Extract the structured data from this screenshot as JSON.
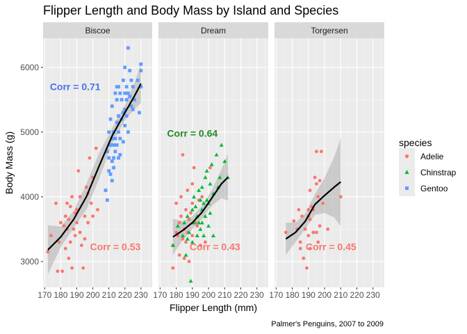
{
  "chart_data": {
    "type": "scatter",
    "title": "Flipper Length and Body Mass by Island and Species",
    "xlabel": "Flipper Length (mm)",
    "ylabel": "Body Mass (g)",
    "caption": "Palmer's Penguins, 2007 to 2009",
    "xlim": [
      169,
      237
    ],
    "ylim": [
      2600,
      6450
    ],
    "x_ticks": [
      170,
      180,
      190,
      200,
      210,
      220,
      230
    ],
    "y_ticks": [
      3000,
      4000,
      5000,
      6000
    ],
    "tick_labels_x": [
      "170",
      "180",
      "190",
      "200",
      "210",
      "220",
      "230"
    ],
    "tick_labels_y": [
      "3000",
      "4000",
      "5000",
      "6000"
    ],
    "legend": {
      "title": "species",
      "position": "right",
      "entries": [
        {
          "label": "Adelie",
          "color": "#F8766D",
          "shape": "circle"
        },
        {
          "label": "Chinstrap",
          "color": "#00BA38",
          "shape": "triangle"
        },
        {
          "label": "Gentoo",
          "color": "#619CFF",
          "shape": "square"
        }
      ]
    },
    "facets": [
      {
        "label": "Biscoe",
        "annotations": [
          {
            "text": "Corr = 0.71",
            "color": "#4472E8",
            "x": 189,
            "y": 5700,
            "anchor": "middle"
          },
          {
            "text": "Corr = 0.53",
            "color": "#F8766D",
            "x": 214,
            "y": 3230,
            "anchor": "middle"
          }
        ],
        "smooth": {
          "x": [
            172,
            180,
            188,
            196,
            204,
            212,
            220,
            226,
            230
          ],
          "y": [
            3180,
            3380,
            3650,
            4000,
            4480,
            4940,
            5300,
            5560,
            5750
          ],
          "lower": [
            2800,
            3220,
            3520,
            3800,
            4280,
            4820,
            5180,
            5360,
            5450
          ],
          "upper": [
            3560,
            3540,
            3780,
            4200,
            4680,
            5060,
            5420,
            5760,
            6050
          ]
        },
        "series": [
          {
            "name": "Adelie",
            "x": [
              172,
              174,
              177,
              178,
              179,
              180,
              181,
              182,
              183,
              183,
              184,
              184,
              185,
              185,
              186,
              186,
              187,
              187,
              188,
              189,
              189,
              190,
              190,
              191,
              192,
              192,
              193,
              194,
              195,
              195,
              196,
              197,
              197,
              198,
              199,
              200,
              200,
              202,
              203
            ],
            "y": [
              3150,
              3400,
              3900,
              2850,
              3300,
              3600,
              2850,
              3550,
              3200,
              3700,
              3500,
              3900,
              3050,
              3650,
              3300,
              3850,
              4000,
              2900,
              3500,
              3750,
              3400,
              3800,
              3600,
              4400,
              4000,
              3450,
              3250,
              2900,
              3700,
              3350,
              4150,
              3600,
              4050,
              4600,
              3900,
              4300,
              3700,
              4750,
              3800
            ]
          },
          {
            "name": "Gentoo",
            "x": [
              208,
              209,
              209,
              210,
              210,
              210,
              211,
              211,
              211,
              212,
              212,
              212,
              212,
              213,
              213,
              213,
              213,
              214,
              214,
              214,
              215,
              215,
              215,
              215,
              216,
              216,
              216,
              216,
              217,
              217,
              217,
              218,
              218,
              219,
              219,
              219,
              220,
              220,
              220,
              220,
              221,
              221,
              221,
              222,
              222,
              222,
              223,
              223,
              224,
              224,
              225,
              225,
              226,
              228,
              229,
              230,
              230,
              230
            ],
            "y": [
              4100,
              3950,
              4700,
              4600,
              5000,
              4400,
              4350,
              4800,
              5200,
              4550,
              4900,
              5400,
              4250,
              4600,
              4800,
              5000,
              4450,
              4700,
              5600,
              4900,
              4800,
              5150,
              5700,
              5500,
              4600,
              5000,
              5250,
              5700,
              4650,
              4900,
              5600,
              5200,
              5500,
              4850,
              5300,
              5800,
              5350,
              5600,
              6000,
              5100,
              5250,
              5500,
              5700,
              5000,
              5600,
              6300,
              5550,
              5950,
              5400,
              5800,
              5350,
              5700,
              5500,
              5800,
              5300,
              5950,
              5700,
              6050
            ]
          }
        ]
      },
      {
        "label": "Dream",
        "annotations": [
          {
            "text": "Corr = 0.64",
            "color": "#1E8C1E",
            "x": 190,
            "y": 4980,
            "anchor": "middle"
          },
          {
            "text": "Corr = 0.43",
            "color": "#F8766D",
            "x": 204,
            "y": 3230,
            "anchor": "middle"
          }
        ],
        "smooth": {
          "x": [
            178,
            184,
            190,
            196,
            202,
            208,
            212
          ],
          "y": [
            3380,
            3480,
            3600,
            3760,
            3980,
            4200,
            4300
          ],
          "lower": [
            3100,
            3330,
            3500,
            3660,
            3860,
            3980,
            3940
          ],
          "upper": [
            3660,
            3620,
            3700,
            3860,
            4100,
            4420,
            4660
          ]
        },
        "series": [
          {
            "name": "Adelie",
            "x": [
              178,
              178,
              180,
              180,
              181,
              182,
              182,
              183,
              183,
              184,
              184,
              185,
              185,
              186,
              186,
              187,
              187,
              188,
              188,
              189,
              190,
              190,
              190,
              191,
              192,
              193,
              194,
              195,
              196,
              198,
              201
            ],
            "y": [
              3250,
              2900,
              3450,
              3900,
              3400,
              3600,
              3100,
              4000,
              3700,
              4650,
              3350,
              3500,
              3050,
              3300,
              3800,
              3450,
              4100,
              3650,
              3000,
              3750,
              4200,
              3400,
              3900,
              4450,
              3600,
              3550,
              3950,
              3250,
              4000,
              3300,
              4450
            ]
          },
          {
            "name": "Chinstrap",
            "x": [
              178,
              181,
              184,
              185,
              186,
              187,
              187,
              188,
              189,
              190,
              190,
              191,
              191,
              192,
              193,
              193,
              194,
              194,
              195,
              195,
              196,
              196,
              196,
              197,
              197,
              198,
              198,
              199,
              199,
              200,
              200,
              201,
              201,
              202,
              203,
              203,
              205,
              206,
              207,
              208,
              210,
              212
            ],
            "y": [
              3250,
              3550,
              3400,
              3600,
              3100,
              3700,
              3350,
              3450,
              2700,
              3800,
              3300,
              3600,
              4000,
              3850,
              3700,
              3400,
              3600,
              4100,
              3950,
              3500,
              3800,
              4150,
              3600,
              3900,
              3400,
              4300,
              3700,
              3950,
              4400,
              3550,
              3900,
              3750,
              4200,
              4500,
              4050,
              3400,
              4650,
              4150,
              4300,
              4800,
              4550,
              4300
            ]
          }
        ]
      },
      {
        "label": "Torgersen",
        "annotations": [
          {
            "text": "Corr = 0.45",
            "color": "#F8766D",
            "x": 204,
            "y": 3230,
            "anchor": "middle"
          }
        ],
        "smooth": {
          "x": [
            176,
            182,
            188,
            194,
            200,
            206,
            210
          ],
          "y": [
            3350,
            3450,
            3620,
            3880,
            4020,
            4150,
            4230
          ],
          "lower": [
            3100,
            3300,
            3500,
            3720,
            3750,
            3680,
            3550
          ],
          "upper": [
            3600,
            3600,
            3740,
            4040,
            4290,
            4620,
            4910
          ]
        },
        "series": [
          {
            "name": "Adelie",
            "x": [
              176,
              181,
              183,
              184,
              185,
              185,
              186,
              187,
              188,
              189,
              190,
              190,
              190,
              191,
              191,
              191,
              192,
              193,
              193,
              194,
              195,
              195,
              195,
              196,
              196,
              197,
              197,
              198,
              199,
              202,
              210
            ],
            "y": [
              3450,
              3625,
              3500,
              3800,
              3200,
              3300,
              3700,
              3050,
              3500,
              2900,
              3400,
              3700,
              3800,
              4100,
              3200,
              3650,
              3850,
              3450,
              3800,
              4300,
              4700,
              3450,
              4200,
              4000,
              3300,
              3550,
              4250,
              4700,
              3900,
              3500,
              4000
            ]
          }
        ]
      }
    ]
  }
}
